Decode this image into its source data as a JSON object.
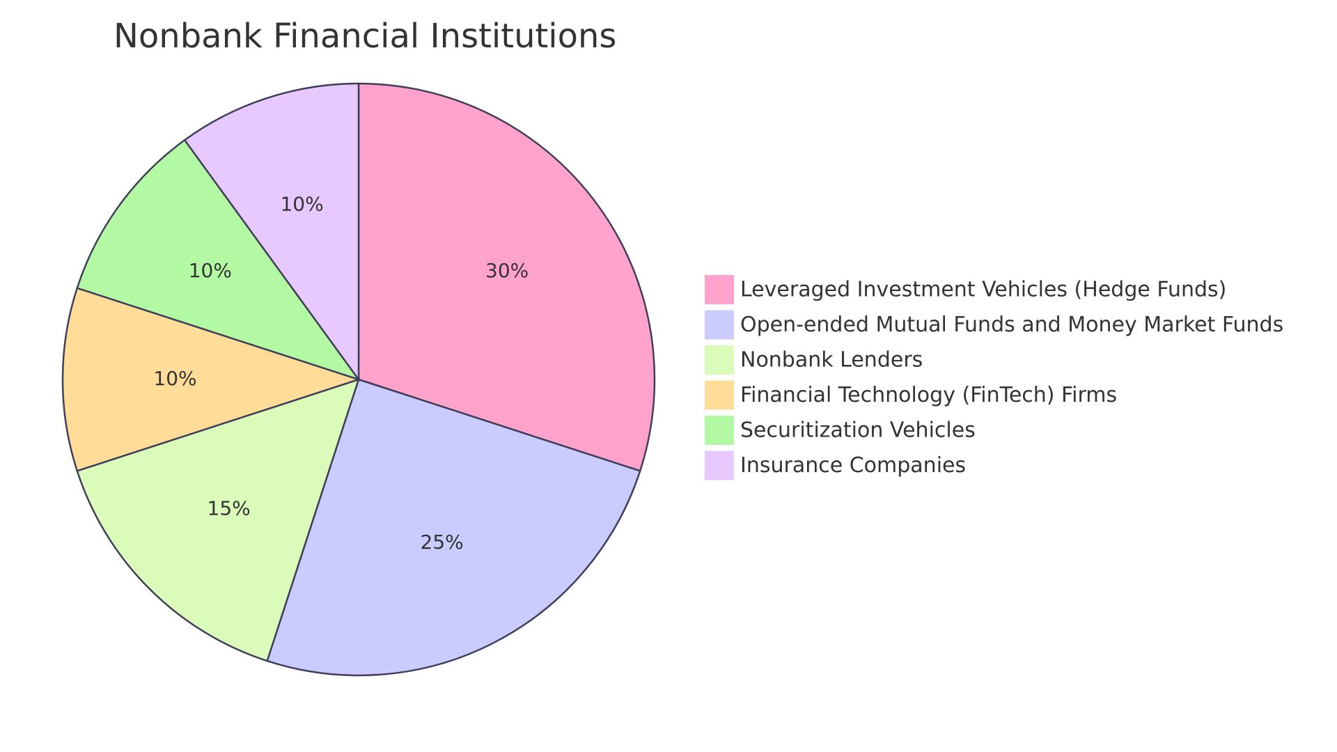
{
  "chart_data": {
    "type": "pie",
    "title": "Nonbank Financial Institutions",
    "slices": [
      {
        "label": "Leveraged Investment Vehicles (Hedge Funds)",
        "value": 30,
        "display": "30%",
        "color": "#ffa3cd"
      },
      {
        "label": "Open-ended Mutual Funds and Money Market Funds",
        "value": 25,
        "display": "25%",
        "color": "#cacbff"
      },
      {
        "label": "Nonbank Lenders",
        "value": 15,
        "display": "15%",
        "color": "#dafbba"
      },
      {
        "label": "Financial Technology (FinTech) Firms",
        "value": 10,
        "display": "10%",
        "color": "#ffdd98"
      },
      {
        "label": "Securitization Vehicles",
        "value": 10,
        "display": "10%",
        "color": "#b3f9a3"
      },
      {
        "label": "Insurance Companies",
        "value": 10,
        "display": "10%",
        "color": "#e8c9ff"
      }
    ],
    "legend_position": "right",
    "start_angle": "top, clockwise"
  }
}
